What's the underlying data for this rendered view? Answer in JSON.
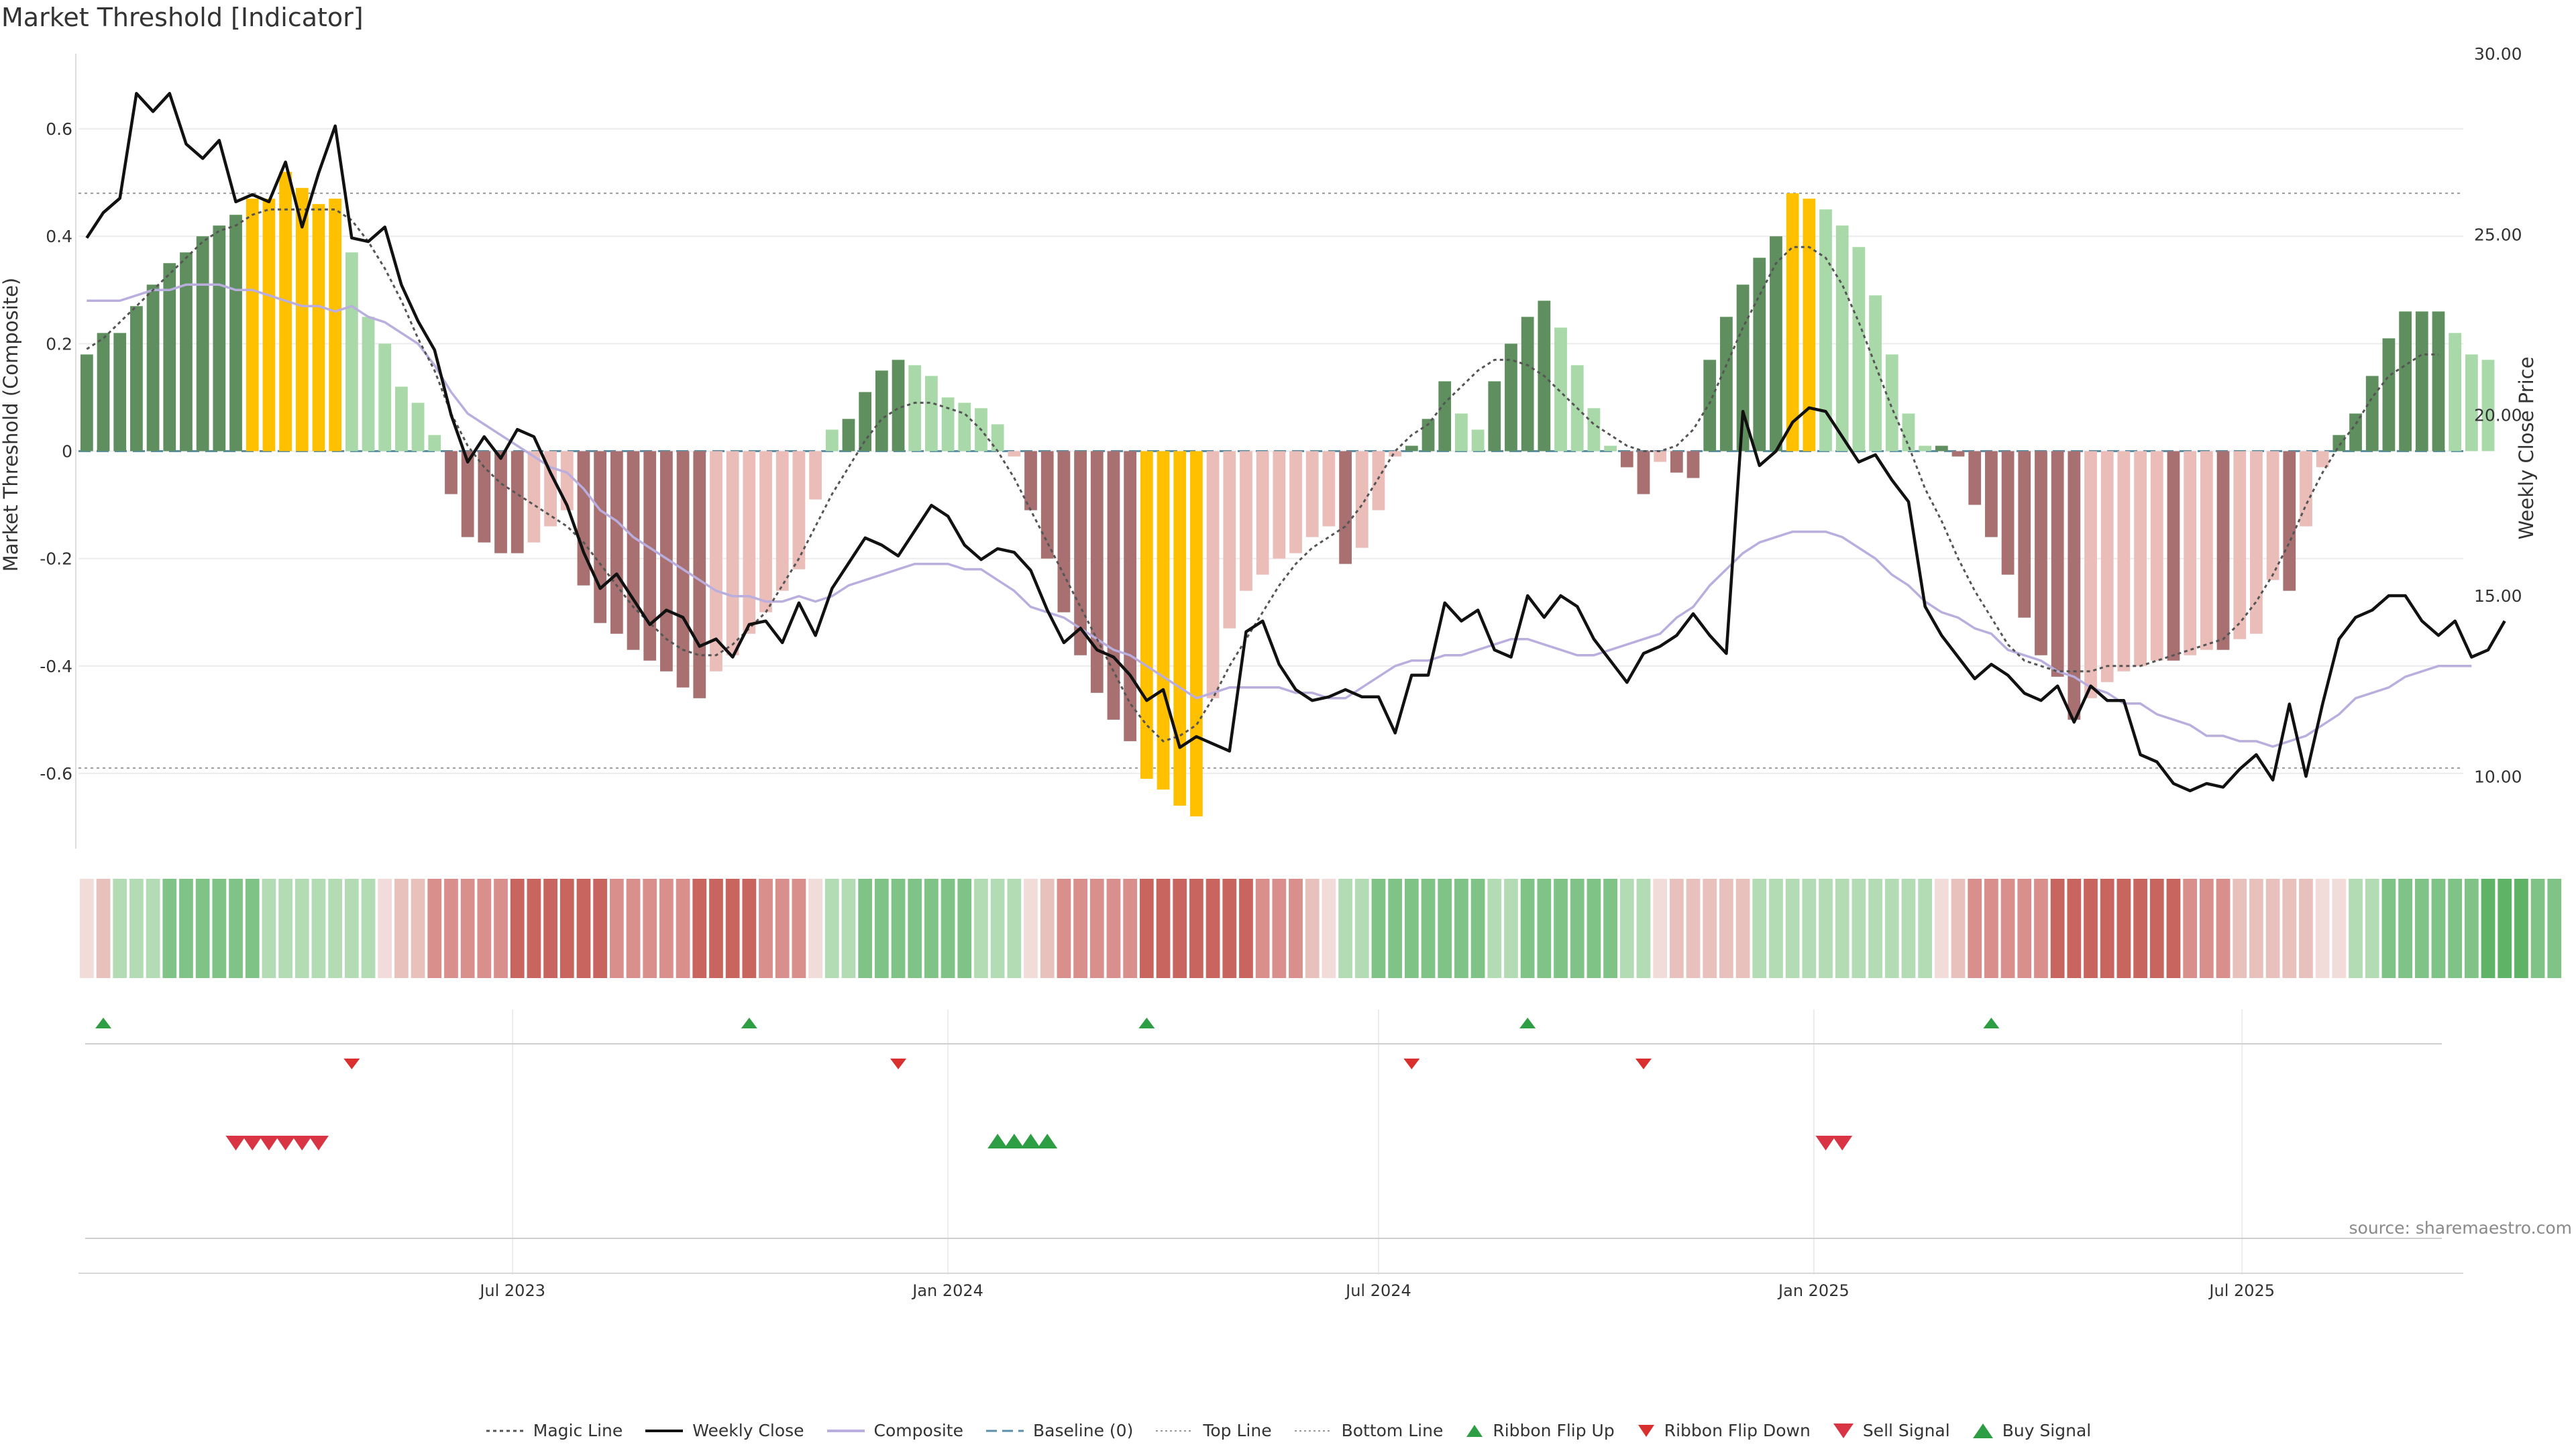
{
  "title": "Market Threshold [Indicator]",
  "source": "source: sharemaestro.com",
  "colors": {
    "magic_line": "#555555",
    "weekly_close": "#111111",
    "composite": "#b9aede",
    "baseline": "#5b8fa8",
    "bar_dark_green": "#5f8f5f",
    "bar_light_green": "#a9d8a9",
    "bar_dark_red": "#a87070",
    "bar_light_red": "#ebbdb9",
    "bar_gold": "#ffc000",
    "ribbon_flip_up": "#2e9e44",
    "ribbon_flip_down": "#d9302f",
    "sell_signal": "#d93444",
    "buy_signal": "#2e9e44"
  },
  "chart_data": {
    "type": "bar",
    "title": "Market Threshold [Indicator]",
    "ylabel": "Market Threshold (Composite)",
    "y2label": "Weekly Close Price",
    "ylim": [
      -0.74,
      0.74
    ],
    "y2lim": [
      8,
      30
    ],
    "yticks": [
      "-0.6",
      "-0.4",
      "-0.2",
      "0",
      "0.2",
      "0.4",
      "0.6"
    ],
    "y2ticks": [
      "10.00",
      "15.00",
      "20.00",
      "25.00",
      "30.00"
    ],
    "x_start": "2023-01-02",
    "week_count": 144,
    "xticks": [
      {
        "label": "Jul 2023",
        "date": "2023-07-01"
      },
      {
        "label": "Jan 2024",
        "date": "2024-01-01"
      },
      {
        "label": "Jul 2024",
        "date": "2024-07-01"
      },
      {
        "label": "Jan 2025",
        "date": "2025-01-01"
      },
      {
        "label": "Jul 2025",
        "date": "2025-07-01"
      }
    ],
    "top_line": 0.48,
    "bottom_line": -0.59,
    "grid": true,
    "legend_position": "bottom",
    "legend": [
      "Magic Line",
      "Weekly Close",
      "Composite",
      "Baseline (0)",
      "Top Line",
      "Bottom Line",
      "Ribbon Flip Up",
      "Ribbon Flip Down",
      "Sell Signal",
      "Buy Signal"
    ],
    "composite_bars": [
      0.18,
      0.22,
      0.22,
      0.27,
      0.31,
      0.35,
      0.37,
      0.4,
      0.42,
      0.44,
      0.47,
      0.47,
      0.52,
      0.49,
      0.46,
      0.47,
      0.37,
      0.25,
      0.2,
      0.12,
      0.09,
      0.03,
      -0.08,
      -0.16,
      -0.17,
      -0.19,
      -0.19,
      -0.17,
      -0.14,
      -0.11,
      -0.25,
      -0.32,
      -0.34,
      -0.37,
      -0.39,
      -0.41,
      -0.44,
      -0.46,
      -0.41,
      -0.38,
      -0.34,
      -0.3,
      -0.26,
      -0.22,
      -0.09,
      0.04,
      0.06,
      0.11,
      0.15,
      0.17,
      0.16,
      0.14,
      0.1,
      0.09,
      0.08,
      0.05,
      -0.01,
      -0.11,
      -0.2,
      -0.3,
      -0.38,
      -0.45,
      -0.5,
      -0.54,
      -0.61,
      -0.63,
      -0.66,
      -0.68,
      -0.46,
      -0.33,
      -0.26,
      -0.23,
      -0.2,
      -0.19,
      -0.16,
      -0.14,
      -0.21,
      -0.18,
      -0.11,
      -0.01,
      0.01,
      0.06,
      0.13,
      0.07,
      0.04,
      0.13,
      0.2,
      0.25,
      0.28,
      0.23,
      0.16,
      0.08,
      0.01,
      -0.03,
      -0.08,
      -0.02,
      -0.04,
      -0.05,
      0.17,
      0.25,
      0.31,
      0.36,
      0.4,
      0.48,
      0.47,
      0.45,
      0.42,
      0.38,
      0.29,
      0.18,
      0.07,
      0.01,
      0.01,
      -0.01,
      -0.1,
      -0.16,
      -0.23,
      -0.31,
      -0.38,
      -0.42,
      -0.5,
      -0.46,
      -0.43,
      -0.41,
      -0.4,
      -0.39,
      -0.39,
      -0.38,
      -0.37,
      -0.37,
      -0.35,
      -0.34,
      -0.24,
      -0.26,
      -0.14,
      -0.03,
      0.03,
      0.07,
      0.14,
      0.21,
      0.26,
      0.26,
      0.26,
      0.22,
      0.18,
      0.17
    ],
    "composite_line": [
      0.28,
      0.28,
      0.28,
      0.29,
      0.3,
      0.3,
      0.31,
      0.31,
      0.31,
      0.3,
      0.3,
      0.29,
      0.28,
      0.27,
      0.27,
      0.26,
      0.27,
      0.25,
      0.24,
      0.22,
      0.2,
      0.16,
      0.11,
      0.07,
      0.05,
      0.03,
      0.01,
      -0.01,
      -0.03,
      -0.04,
      -0.07,
      -0.11,
      -0.13,
      -0.16,
      -0.18,
      -0.2,
      -0.22,
      -0.24,
      -0.26,
      -0.27,
      -0.27,
      -0.28,
      -0.28,
      -0.27,
      -0.28,
      -0.27,
      -0.25,
      -0.24,
      -0.23,
      -0.22,
      -0.21,
      -0.21,
      -0.21,
      -0.22,
      -0.22,
      -0.24,
      -0.26,
      -0.29,
      -0.3,
      -0.31,
      -0.33,
      -0.35,
      -0.37,
      -0.38,
      -0.4,
      -0.42,
      -0.44,
      -0.46,
      -0.45,
      -0.44,
      -0.44,
      -0.44,
      -0.44,
      -0.45,
      -0.45,
      -0.46,
      -0.46,
      -0.44,
      -0.42,
      -0.4,
      -0.39,
      -0.39,
      -0.38,
      -0.38,
      -0.37,
      -0.36,
      -0.35,
      -0.35,
      -0.36,
      -0.37,
      -0.38,
      -0.38,
      -0.37,
      -0.36,
      -0.35,
      -0.34,
      -0.31,
      -0.29,
      -0.25,
      -0.22,
      -0.19,
      -0.17,
      -0.16,
      -0.15,
      -0.15,
      -0.15,
      -0.16,
      -0.18,
      -0.2,
      -0.23,
      -0.25,
      -0.28,
      -0.3,
      -0.31,
      -0.33,
      -0.34,
      -0.37,
      -0.38,
      -0.39,
      -0.41,
      -0.42,
      -0.44,
      -0.45,
      -0.47,
      -0.47,
      -0.49,
      -0.5,
      -0.51,
      -0.53,
      -0.53,
      -0.54,
      -0.54,
      -0.55,
      -0.54,
      -0.53,
      -0.51,
      -0.49,
      -0.46,
      -0.45,
      -0.44,
      -0.42,
      -0.41,
      -0.4,
      -0.4,
      -0.4
    ],
    "magic_line": [
      0.19,
      0.21,
      0.24,
      0.27,
      0.3,
      0.33,
      0.36,
      0.39,
      0.41,
      0.42,
      0.44,
      0.45,
      0.45,
      0.45,
      0.45,
      0.45,
      0.43,
      0.39,
      0.34,
      0.28,
      0.21,
      0.15,
      0.07,
      0.01,
      -0.03,
      -0.06,
      -0.08,
      -0.1,
      -0.12,
      -0.14,
      -0.17,
      -0.21,
      -0.25,
      -0.29,
      -0.32,
      -0.35,
      -0.37,
      -0.38,
      -0.38,
      -0.36,
      -0.33,
      -0.3,
      -0.25,
      -0.2,
      -0.14,
      -0.08,
      -0.03,
      0.02,
      0.06,
      0.08,
      0.09,
      0.09,
      0.08,
      0.07,
      0.04,
      0.0,
      -0.05,
      -0.11,
      -0.17,
      -0.23,
      -0.29,
      -0.35,
      -0.41,
      -0.47,
      -0.51,
      -0.54,
      -0.53,
      -0.51,
      -0.46,
      -0.4,
      -0.35,
      -0.3,
      -0.25,
      -0.21,
      -0.18,
      -0.16,
      -0.14,
      -0.1,
      -0.05,
      0.0,
      0.03,
      0.05,
      0.09,
      0.12,
      0.15,
      0.17,
      0.17,
      0.16,
      0.14,
      0.11,
      0.08,
      0.05,
      0.03,
      0.01,
      0.0,
      0.0,
      0.01,
      0.04,
      0.09,
      0.16,
      0.23,
      0.29,
      0.35,
      0.38,
      0.38,
      0.36,
      0.31,
      0.24,
      0.16,
      0.08,
      0.01,
      -0.07,
      -0.13,
      -0.2,
      -0.26,
      -0.31,
      -0.36,
      -0.39,
      -0.4,
      -0.41,
      -0.41,
      -0.41,
      -0.4,
      -0.4,
      -0.4,
      -0.39,
      -0.38,
      -0.37,
      -0.36,
      -0.35,
      -0.32,
      -0.28,
      -0.23,
      -0.17,
      -0.1,
      -0.04,
      0.01,
      0.05,
      0.1,
      0.14,
      0.16,
      0.18,
      0.18
    ],
    "weekly_close": [
      24.9,
      25.6,
      26.0,
      28.9,
      28.4,
      28.9,
      27.5,
      27.1,
      27.6,
      25.9,
      26.1,
      25.9,
      27.0,
      25.2,
      26.7,
      28.0,
      24.9,
      24.8,
      25.2,
      23.6,
      22.6,
      21.8,
      20.0,
      18.7,
      19.4,
      18.8,
      19.6,
      19.4,
      18.4,
      17.5,
      16.2,
      15.2,
      15.6,
      14.9,
      14.2,
      14.6,
      14.4,
      13.6,
      13.8,
      13.3,
      14.2,
      14.3,
      13.7,
      14.8,
      13.9,
      15.2,
      15.9,
      16.6,
      16.4,
      16.1,
      16.8,
      17.5,
      17.2,
      16.4,
      16.0,
      16.3,
      16.2,
      15.7,
      14.6,
      13.7,
      14.1,
      13.5,
      13.3,
      12.8,
      12.1,
      12.4,
      10.8,
      11.1,
      10.9,
      10.7,
      14.0,
      14.3,
      13.1,
      12.4,
      12.1,
      12.2,
      12.4,
      12.2,
      12.2,
      11.2,
      12.8,
      12.8,
      14.8,
      14.3,
      14.6,
      13.5,
      13.3,
      15.0,
      14.4,
      15.0,
      14.7,
      13.8,
      13.2,
      12.6,
      13.4,
      13.6,
      13.9,
      14.5,
      13.9,
      13.4,
      20.1,
      18.6,
      19.0,
      19.8,
      20.2,
      20.1,
      19.4,
      18.7,
      18.9,
      18.2,
      17.6,
      14.7,
      13.9,
      13.3,
      12.7,
      13.1,
      12.8,
      12.3,
      12.1,
      12.5,
      11.5,
      12.5,
      12.1,
      12.1,
      10.6,
      10.4,
      9.8,
      9.6,
      9.8,
      9.7,
      10.2,
      10.6,
      9.9,
      12.0,
      10.0,
      12.0,
      13.8,
      14.4,
      14.6,
      15.0,
      15.0,
      14.3,
      13.9,
      14.3,
      13.3,
      13.5,
      14.3
    ],
    "ribbon_color_codes": [
      0,
      -1,
      1,
      1,
      1,
      2,
      2,
      2,
      2,
      2,
      2,
      1,
      1,
      1,
      1,
      1,
      1,
      1,
      0,
      -1,
      -1,
      -2,
      -2,
      -2,
      -2,
      -2,
      -3,
      -3,
      -3,
      -3,
      -3,
      -3,
      -2,
      -2,
      -2,
      -2,
      -2,
      -3,
      -3,
      -3,
      -3,
      -2,
      -2,
      -2,
      0,
      1,
      1,
      2,
      2,
      2,
      2,
      2,
      2,
      2,
      1,
      1,
      1,
      0,
      -1,
      -2,
      -2,
      -2,
      -2,
      -2,
      -3,
      -3,
      -3,
      -3,
      -3,
      -3,
      -3,
      -2,
      -2,
      -2,
      -1,
      0,
      1,
      1,
      2,
      2,
      2,
      2,
      2,
      2,
      2,
      1,
      1,
      2,
      2,
      2,
      2,
      2,
      2,
      1,
      1,
      0,
      -1,
      -1,
      -1,
      -1,
      -1,
      1,
      1,
      1,
      1,
      1,
      1,
      1,
      1,
      1,
      1,
      1,
      0,
      -1,
      -2,
      -2,
      -2,
      -2,
      -2,
      -3,
      -3,
      -3,
      -3,
      -3,
      -3,
      -3,
      -3,
      -2,
      -2,
      -2,
      -1,
      -1,
      -1,
      -1,
      -1,
      0,
      0,
      1,
      1,
      2,
      2,
      2,
      2,
      2,
      2,
      3,
      3,
      3,
      2,
      2
    ],
    "ribbon_flip_up_weeks": [
      1,
      40,
      64,
      87,
      115
    ],
    "ribbon_flip_down_weeks": [
      16,
      49,
      80,
      94
    ],
    "sell_signal_weeks": [
      9,
      10,
      11,
      12,
      13,
      14
    ],
    "buy_signal_weeks": [
      55,
      56,
      57,
      58
    ]
  }
}
